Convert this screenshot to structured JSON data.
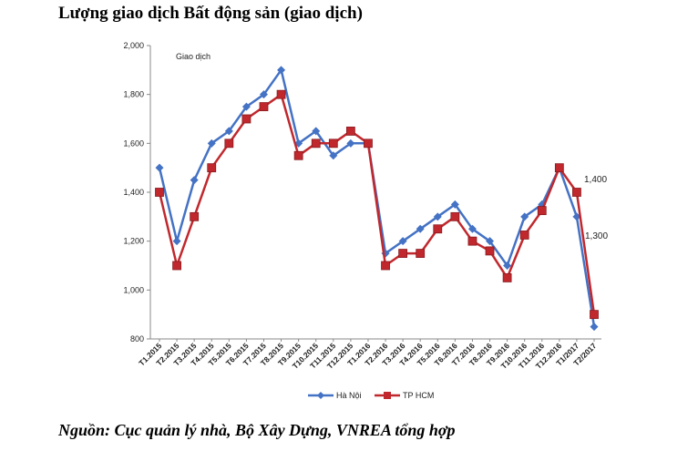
{
  "title": "Lượng giao dịch Bất động sản (giao dịch)",
  "source": "Nguồn: Cục quản lý nhà, Bộ Xây Dựng, VNREA tổng hợp",
  "chart_data": {
    "type": "line",
    "title": "Lượng giao dịch Bất động sản (giao dịch)",
    "ylabel": "Giao dịch",
    "xlabel": "",
    "ylim": [
      800,
      2000
    ],
    "yticks": [
      "800",
      "1,000",
      "1,200",
      "1,400",
      "1,600",
      "1,800",
      "2,000"
    ],
    "grid": false,
    "legend": "bottom",
    "categories": [
      "T1.2015",
      "T2.2015",
      "T3.2015",
      "T4.2015",
      "T5.2015",
      "T6.2015",
      "T7.2015",
      "T8.2015",
      "T9.2015",
      "T10.2015",
      "T11.2015",
      "T12.2015",
      "T1.2016",
      "T2.2016",
      "T3.2016",
      "T4.2016",
      "T5.2016",
      "T6.2016",
      "T7.2016",
      "T8.2016",
      "T9.2016",
      "T10.2016",
      "T11.2016",
      "T12.2016",
      "T1/2017",
      "T2/2017"
    ],
    "series": [
      {
        "name": "Hà Nội",
        "color": "#4472C4",
        "marker": "diamond",
        "values": [
          1500,
          1200,
          1450,
          1600,
          1650,
          1750,
          1800,
          1900,
          1600,
          1650,
          1550,
          1600,
          1600,
          1150,
          1200,
          1250,
          1300,
          1350,
          1250,
          1200,
          1100,
          1300,
          1350,
          1500,
          1300,
          850
        ]
      },
      {
        "name": "TP HCM",
        "color": "#C0282D",
        "marker": "square",
        "values": [
          1400,
          1100,
          1300,
          1500,
          1600,
          1700,
          1750,
          1800,
          1550,
          1600,
          1600,
          1650,
          1600,
          1100,
          1150,
          1150,
          1250,
          1300,
          1200,
          1160,
          1050,
          1225,
          1325,
          1500,
          1400,
          900
        ]
      }
    ],
    "annotations": [
      "1,400",
      "1,300"
    ]
  }
}
